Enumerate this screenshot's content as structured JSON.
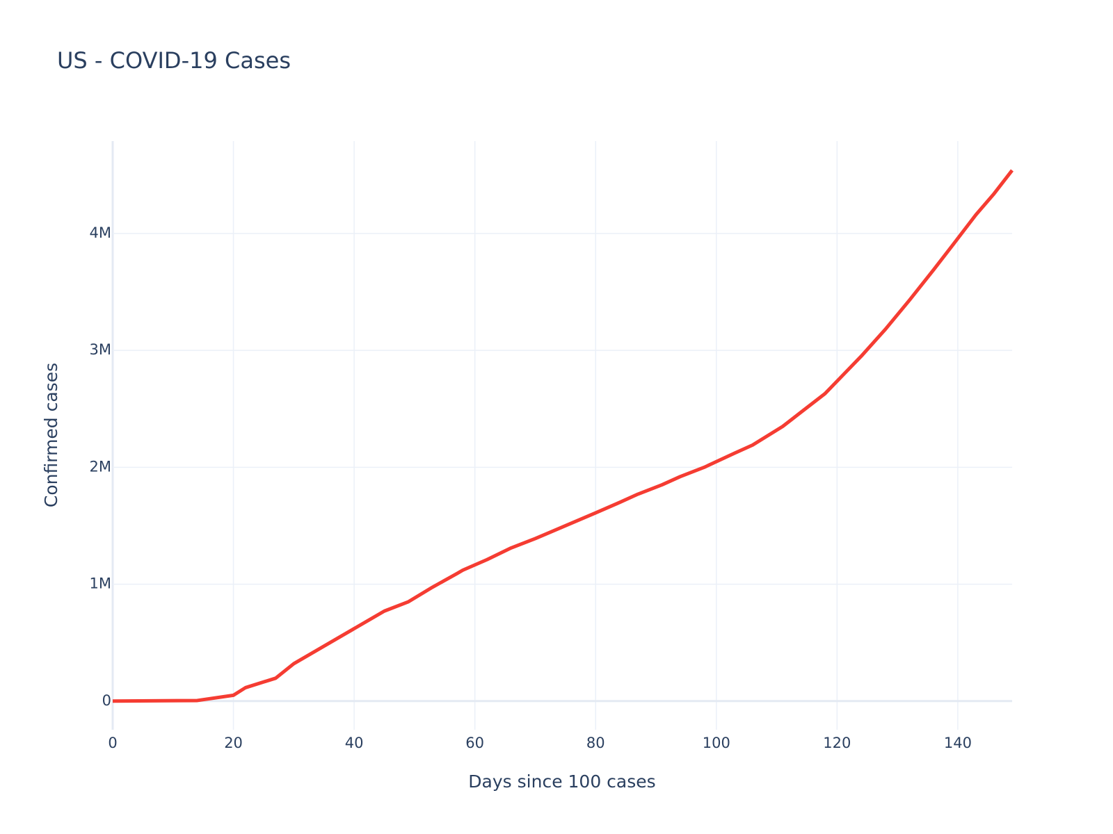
{
  "chart_data": {
    "type": "line",
    "title": "US - COVID-19 Cases",
    "x_label": "Days since 100 cases",
    "y_label": "Confirmed cases",
    "x": [
      0,
      14,
      20,
      22,
      27,
      30,
      38,
      45,
      49,
      53,
      57,
      58,
      62,
      66,
      70,
      75,
      80,
      84,
      87,
      91,
      94,
      98,
      103,
      106,
      111,
      114,
      118,
      121,
      124,
      128,
      132,
      136,
      139,
      143,
      146,
      149
    ],
    "values": [
      100,
      5000,
      50000,
      115000,
      196000,
      320000,
      560000,
      770000,
      850000,
      975000,
      1090000,
      1120000,
      1210000,
      1310000,
      1390000,
      1500000,
      1610000,
      1700000,
      1770000,
      1850000,
      1920000,
      2000000,
      2120000,
      2190000,
      2350000,
      2470000,
      2630000,
      2790000,
      2950000,
      3180000,
      3430000,
      3690000,
      3890000,
      4160000,
      4340000,
      4540000
    ],
    "color": "#f53c32",
    "xlim": [
      0,
      149
    ],
    "ylim": [
      -245000,
      4790000
    ],
    "xticks": [
      0,
      20,
      40,
      60,
      80,
      100,
      120,
      140
    ],
    "yticks": [
      0,
      {
        "value": 1000000,
        "label": "1M"
      },
      {
        "value": 2000000,
        "label": "2M"
      },
      {
        "value": 3000000,
        "label": "3M"
      },
      {
        "value": 4000000,
        "label": "4M"
      }
    ],
    "grid": true
  }
}
